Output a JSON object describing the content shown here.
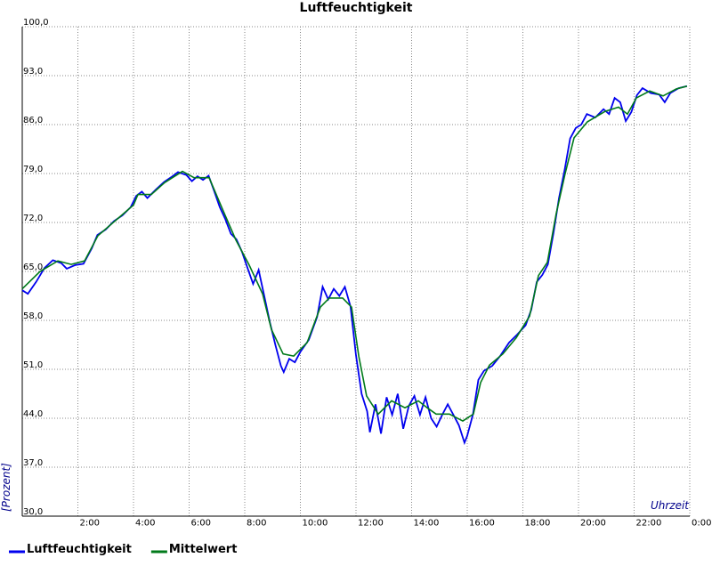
{
  "chart_data": {
    "type": "line",
    "title": "Luftfeuchtigkeit",
    "y_label": "[Prozent]",
    "x_label": "Uhrzeit",
    "xlim": [
      0,
      24
    ],
    "ylim": [
      30,
      100
    ],
    "grid": true,
    "legend": "bottom-left",
    "xticks": [
      {
        "value": 2,
        "label": "2:00"
      },
      {
        "value": 4,
        "label": "4:00"
      },
      {
        "value": 6,
        "label": "6:00"
      },
      {
        "value": 8,
        "label": "8:00"
      },
      {
        "value": 10,
        "label": "10:00"
      },
      {
        "value": 12,
        "label": "12:00"
      },
      {
        "value": 14,
        "label": "14:00"
      },
      {
        "value": 16,
        "label": "16:00"
      },
      {
        "value": 18,
        "label": "18:00"
      },
      {
        "value": 20,
        "label": "20:00"
      },
      {
        "value": 22,
        "label": "22:00"
      },
      {
        "value": 24,
        "label": "0:00"
      }
    ],
    "yticks": [
      {
        "value": 30,
        "label": "30,0"
      },
      {
        "value": 37,
        "label": "37,0"
      },
      {
        "value": 44,
        "label": "44,0"
      },
      {
        "value": 51,
        "label": "51,0"
      },
      {
        "value": 58,
        "label": "58,0"
      },
      {
        "value": 65,
        "label": "65,0"
      },
      {
        "value": 72,
        "label": "72,0"
      },
      {
        "value": 79,
        "label": "79,0"
      },
      {
        "value": 86,
        "label": "86,0"
      },
      {
        "value": 93,
        "label": "93,0"
      },
      {
        "value": 100,
        "label": "100,0"
      }
    ],
    "series": [
      {
        "name": "Luftfeuchtigkeit",
        "color": "#0000ee",
        "x": [
          0,
          0.2,
          0.5,
          0.8,
          1.1,
          1.4,
          1.6,
          1.9,
          2.2,
          2.5,
          2.7,
          3.0,
          3.3,
          3.6,
          3.9,
          4.1,
          4.3,
          4.5,
          4.8,
          5.1,
          5.4,
          5.6,
          5.9,
          6.1,
          6.3,
          6.5,
          6.7,
          6.9,
          7.1,
          7.3,
          7.5,
          7.7,
          7.9,
          8.1,
          8.3,
          8.5,
          8.7,
          8.9,
          9.1,
          9.3,
          9.4,
          9.6,
          9.8,
          10.0,
          10.3,
          10.6,
          10.8,
          11.0,
          11.2,
          11.4,
          11.6,
          11.8,
          12.0,
          12.2,
          12.4,
          12.5,
          12.7,
          12.9,
          13.1,
          13.3,
          13.5,
          13.7,
          13.9,
          14.1,
          14.3,
          14.5,
          14.7,
          14.9,
          15.1,
          15.3,
          15.5,
          15.7,
          15.9,
          16.0,
          16.2,
          16.4,
          16.6,
          16.9,
          17.2,
          17.5,
          17.8,
          18.1,
          18.3,
          18.5,
          18.7,
          18.9,
          19.1,
          19.3,
          19.5,
          19.7,
          19.9,
          20.1,
          20.3,
          20.6,
          20.9,
          21.1,
          21.3,
          21.5,
          21.7,
          21.9,
          22.1,
          22.3,
          22.6,
          22.9,
          23.1,
          23.3,
          23.6,
          23.9
        ],
        "values": [
          62.3,
          61.8,
          63.5,
          65.5,
          66.6,
          66.2,
          65.4,
          65.9,
          66.1,
          68.3,
          70.2,
          71,
          72.2,
          73,
          74.2,
          75.8,
          76.4,
          75.5,
          76.7,
          77.8,
          78.6,
          79.2,
          78.8,
          77.9,
          78.6,
          78.1,
          78.7,
          76.5,
          74.2,
          72.5,
          70.4,
          69.6,
          67.8,
          65.5,
          63.2,
          65.2,
          61.5,
          57.8,
          54.5,
          51.5,
          50.6,
          52.5,
          52,
          53.5,
          55.2,
          58.5,
          62.8,
          61,
          62.5,
          61.5,
          62.8,
          60,
          53,
          47.5,
          45,
          42,
          46,
          41.8,
          47,
          44.5,
          47.5,
          42.5,
          45.8,
          47.2,
          44.5,
          47,
          44,
          42.8,
          44.5,
          46,
          44.5,
          43,
          40.5,
          41.5,
          44.5,
          49.5,
          50.8,
          51.5,
          53,
          54.8,
          56,
          57.3,
          59.5,
          63.5,
          64.5,
          66,
          70.5,
          75.5,
          79.5,
          84,
          85.5,
          86,
          87.5,
          87,
          88.2,
          87.5,
          89.8,
          89.2,
          86.5,
          87.8,
          90.2,
          91.2,
          90.5,
          90.3,
          89.2,
          90.5,
          91.2,
          91.5
        ]
      },
      {
        "name": "Mittelwert",
        "color": "#007a1a",
        "x": [
          0,
          0.64,
          1.28,
          1.76,
          2.24,
          2.72,
          3.36,
          4,
          4.16,
          4.64,
          5.12,
          5.76,
          6.18,
          6.72,
          7.2,
          7.68,
          8.16,
          8.64,
          8.96,
          9.38,
          9.76,
          10.24,
          10.72,
          11.04,
          11.52,
          11.84,
          12.1,
          12.38,
          12.8,
          13.28,
          13.76,
          14.24,
          14.56,
          14.88,
          15.36,
          15.84,
          16.22,
          16.48,
          16.8,
          17.28,
          17.76,
          18.24,
          18.56,
          18.88,
          19.2,
          19.52,
          19.84,
          20.32,
          20.96,
          21.44,
          21.76,
          22.08,
          22.56,
          23.04,
          23.52,
          23.9
        ],
        "values": [
          62.5,
          65,
          66.5,
          66,
          66.5,
          70.1,
          72.3,
          74.5,
          76,
          76,
          77.7,
          79.3,
          78.4,
          78.4,
          73.9,
          69.5,
          65.9,
          61.8,
          56.7,
          53.2,
          52.9,
          54.8,
          59.9,
          61.2,
          61.2,
          59.9,
          52.9,
          47.2,
          44.6,
          46.5,
          45.5,
          46.5,
          45.5,
          44.6,
          44.6,
          43.6,
          44.6,
          49.1,
          51.6,
          53.2,
          55.5,
          58.6,
          64.4,
          66.3,
          73.3,
          79,
          84.1,
          86.4,
          87.9,
          88.5,
          87.5,
          89.8,
          90.8,
          90.1,
          91.1,
          91.5
        ]
      }
    ]
  }
}
